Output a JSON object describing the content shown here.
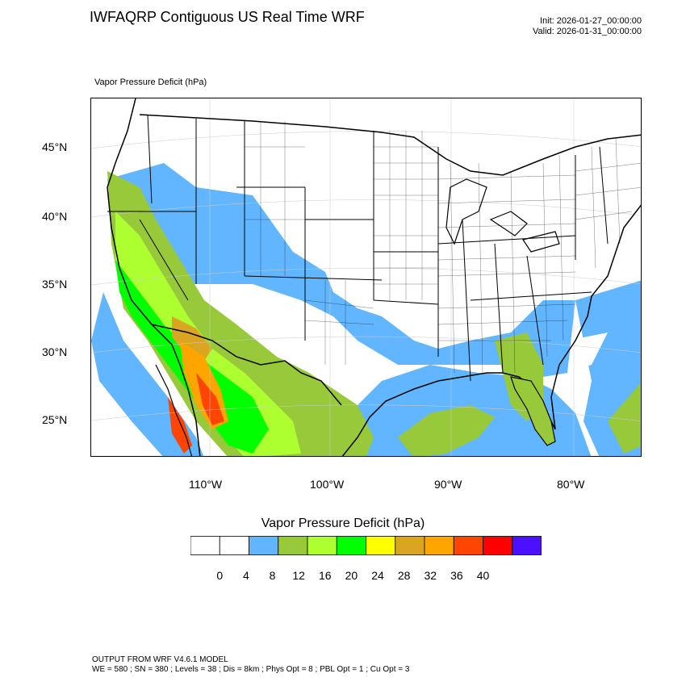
{
  "header": {
    "title": "IWFAQRP Contiguous US Real Time WRF",
    "init_time": "Init: 2026-01-27_00:00:00",
    "valid_time": "Valid: 2026-01-31_00:00:00",
    "field_label": "Vapor Pressure Deficit   (hPa)"
  },
  "map": {
    "latitude_labels": [
      "45°N",
      "40°N",
      "35°N",
      "30°N",
      "25°N"
    ],
    "longitude_labels": [
      "110°W",
      "100°W",
      "90°W",
      "80°W"
    ]
  },
  "colorbar": {
    "title": "Vapor Pressure Deficit  (hPa)",
    "tick_labels": [
      "0",
      "4",
      "8",
      "12",
      "16",
      "20",
      "24",
      "28",
      "32",
      "36",
      "40"
    ],
    "colors": [
      "#ffffff",
      "#ffffff",
      "#62b6ff",
      "#98c93a",
      "#adff2f",
      "#00ff00",
      "#ffff00",
      "#daa520",
      "#ffa500",
      "#ff4500",
      "#ff0000",
      "#4b10ff"
    ]
  },
  "footer": {
    "line1": "OUTPUT FROM WRF V4.6.1 MODEL",
    "line2": "WE = 580 ; SN = 380 ; Levels = 38 ; Dis = 8km ; Phys Opt = 8 ; PBL Opt = 1 ; Cu Opt = 3"
  }
}
